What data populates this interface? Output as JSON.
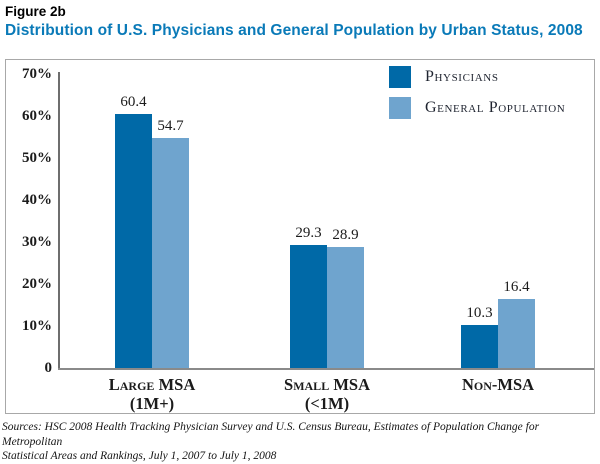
{
  "figure_label": "Figure 2b",
  "title": "Distribution of U.S. Physicians and General Population by Urban Status, 2008",
  "colors": {
    "title_blue": "#0a7ab8",
    "physicians": "#0069a7",
    "general_population": "#6fa4ce",
    "frame_border": "#a8a8a8",
    "axis_line": "#7a7a7a",
    "text": "#1b1b1b"
  },
  "legend": [
    {
      "label": "Physicians",
      "color_key": "physicians"
    },
    {
      "label": "General Population",
      "color_key": "general_population"
    }
  ],
  "chart_data": {
    "type": "bar",
    "title": "Distribution of U.S. Physicians and General Population by Urban Status, 2008",
    "categories": [
      "Large MSA",
      "Small MSA",
      "Non-MSA"
    ],
    "category_sublabels": [
      "(1M+)",
      "(<1M)",
      ""
    ],
    "series": [
      {
        "name": "Physicians",
        "values": [
          60.4,
          29.3,
          10.3
        ]
      },
      {
        "name": "General Population",
        "values": [
          54.7,
          28.9,
          16.4
        ]
      }
    ],
    "xlabel": "",
    "ylabel": "",
    "ylim": [
      0,
      70
    ],
    "ytick_labels": [
      "70%",
      "60%",
      "50%",
      "40%",
      "30%",
      "20%",
      "10%",
      "0"
    ],
    "grid": false,
    "legend_position": "top-right",
    "bar_value_labels": true
  },
  "source_lines": [
    "Sources: HSC 2008 Health Tracking Physician Survey and U.S. Census Bureau, Estimates of Population Change for Metropolitan",
    "Statistical Areas and Rankings, July 1, 2007 to July 1, 2008"
  ]
}
